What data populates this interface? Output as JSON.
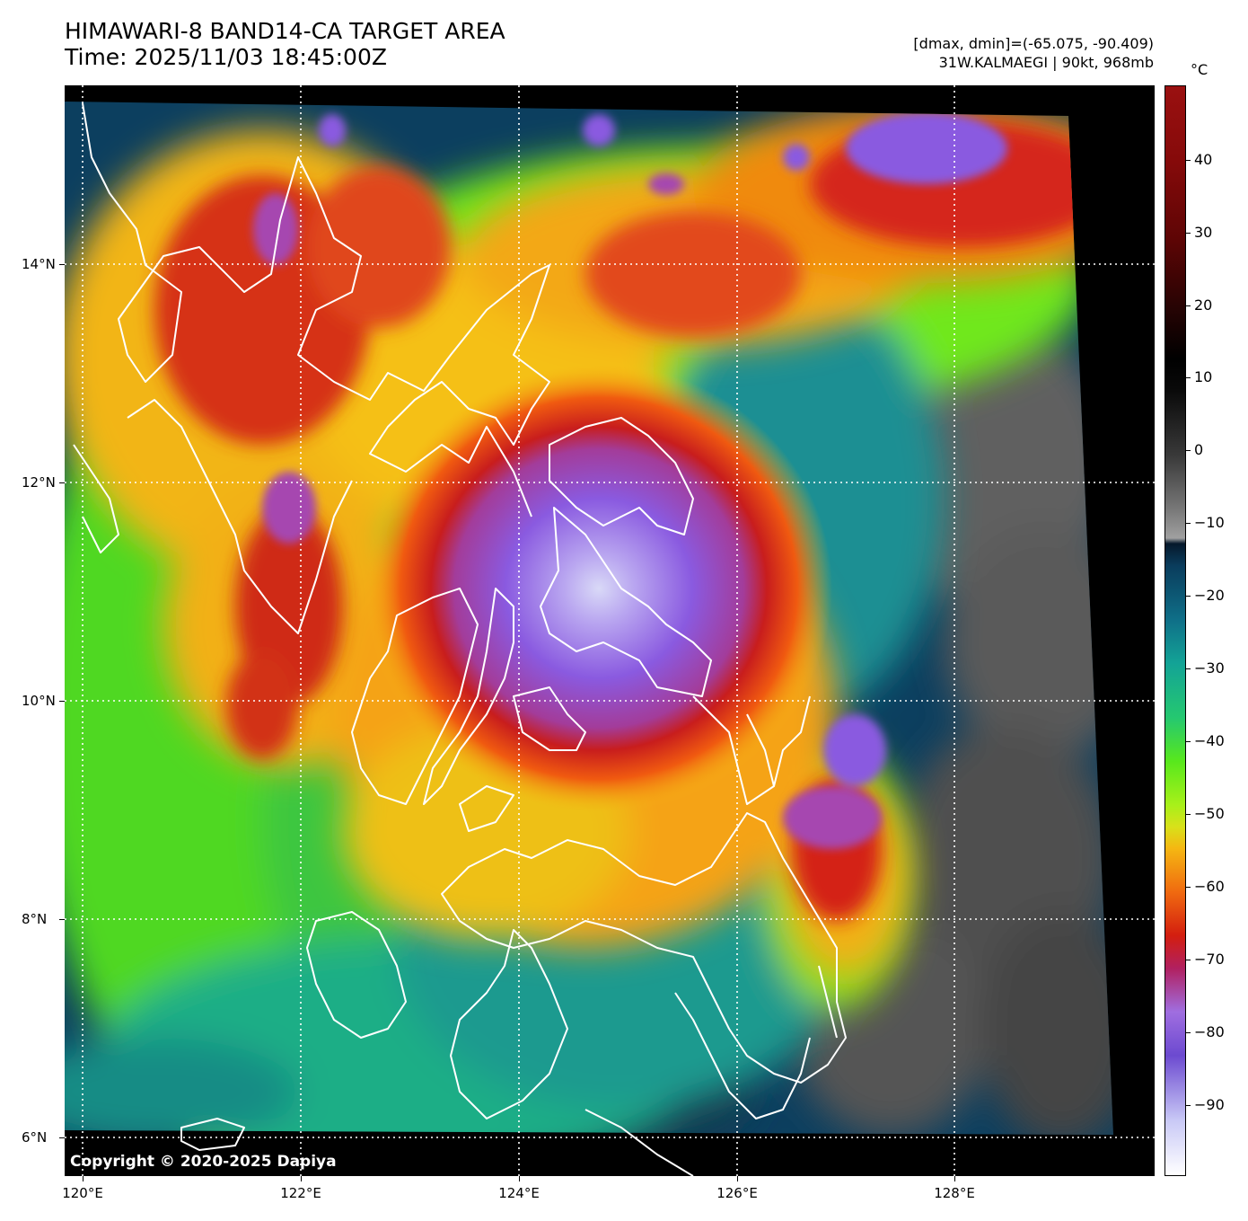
{
  "header": {
    "title_line1": "HIMAWARI-8 BAND14-CA TARGET AREA",
    "title_line2": "Time: 2025/11/03 18:45:00Z",
    "range_text": "[dmax, dmin]=(-65.075, -90.409)",
    "storm_text": "31W.KALMAEGI | 90kt, 968mb"
  },
  "copyright": "Copyright © 2020-2025 Dapiya",
  "axes": {
    "latitudes": [
      "14°N",
      "12°N",
      "10°N",
      "8°N",
      "6°N"
    ],
    "longitudes": [
      "120°E",
      "122°E",
      "124°E",
      "126°E",
      "128°E"
    ]
  },
  "colorbar": {
    "unit": "°C",
    "ticks": [
      "40",
      "30",
      "20",
      "10",
      "0",
      "−10",
      "−20",
      "−30",
      "−40",
      "−50",
      "−60",
      "−70",
      "−80",
      "−90"
    ]
  },
  "colors": {
    "eye_wall": "#8a5ae0",
    "cold_core": "#d42416",
    "mid_cloud": "#f5b712",
    "warm_cloud": "#5fe81c",
    "ocean_clear": "#0d3f5e",
    "coastline": "#ffffff",
    "grid": "#ffffff"
  }
}
